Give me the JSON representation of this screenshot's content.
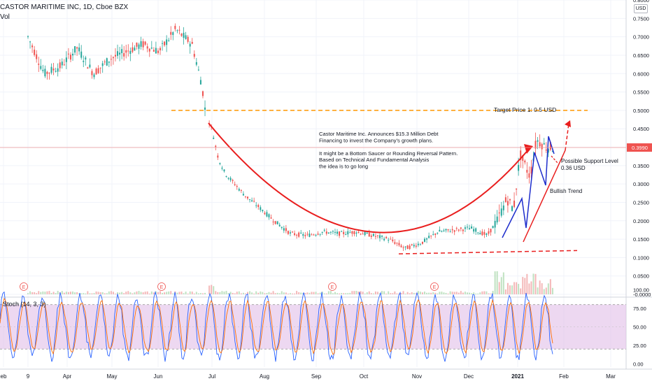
{
  "header": {
    "symbol": "CASTOR MARITIME INC, 1D, Cboe BZX",
    "volume_label": "Vol",
    "currency_badge": "USD"
  },
  "stoch": {
    "label": "Stoch (14, 3, 3)",
    "ticks": [
      "100.00",
      "75.00",
      "50.00",
      "25.00",
      "0.00"
    ],
    "upper_band": 80,
    "lower_band": 20
  },
  "chart_data": {
    "type": "candlestick",
    "y_ticks": [
      "0.8000",
      "0.7500",
      "0.7000",
      "0.6500",
      "0.6000",
      "0.5500",
      "0.5000",
      "0.4500",
      "0.4000",
      "0.3500",
      "0.3000",
      "0.2500",
      "0.2000",
      "0.1500",
      "0.1000",
      "0.0500",
      "-0.0000"
    ],
    "ylim": [
      0,
      0.8
    ],
    "x_ticks": [
      "eb",
      "9",
      "Apr",
      "May",
      "Jun",
      "Jul",
      "Aug",
      "Sep",
      "Oct",
      "Nov",
      "Dec",
      "2021",
      "Feb",
      "Mar"
    ],
    "last_price": "0.3990",
    "price_path": [
      [
        0,
        0.7
      ],
      [
        0.5,
        0.6
      ],
      [
        1,
        0.62
      ],
      [
        1.5,
        0.67
      ],
      [
        2,
        0.6
      ],
      [
        2.5,
        0.64
      ],
      [
        3,
        0.66
      ],
      [
        3.5,
        0.68
      ],
      [
        4,
        0.66
      ],
      [
        4.5,
        0.72
      ],
      [
        5,
        0.68
      ],
      [
        5.3,
        0.57
      ],
      [
        5.4,
        0.5
      ],
      [
        5.6,
        0.45
      ],
      [
        5.8,
        0.37
      ],
      [
        6,
        0.33
      ],
      [
        6.3,
        0.3
      ],
      [
        6.6,
        0.27
      ],
      [
        7,
        0.24
      ],
      [
        7.5,
        0.2
      ],
      [
        8,
        0.165
      ],
      [
        8.5,
        0.16
      ],
      [
        9,
        0.17
      ],
      [
        9.5,
        0.165
      ],
      [
        10,
        0.17
      ],
      [
        10.5,
        0.16
      ],
      [
        11,
        0.15
      ],
      [
        11.5,
        0.125
      ],
      [
        12,
        0.14
      ],
      [
        12.5,
        0.17
      ],
      [
        13,
        0.175
      ],
      [
        13.5,
        0.18
      ],
      [
        14,
        0.16
      ],
      [
        14.3,
        0.2
      ],
      [
        14.6,
        0.26
      ],
      [
        14.8,
        0.23
      ],
      [
        15,
        0.38
      ],
      [
        15.3,
        0.32
      ],
      [
        15.5,
        0.42
      ],
      [
        15.8,
        0.4
      ],
      [
        16,
        0.399
      ]
    ],
    "annotations": {
      "target": "Target Price 1: 0.5 USD",
      "note_lines": [
        "Castor Maritime Inc. Announces $15.3 Million Debt",
        " Financing to invest the Company's growth plans.",
        "",
        "It might be a Bottom Saucer or Rounding Reversal Pattern.",
        "Based on Technical And Fundamental Analysis",
        "the idea is to go long"
      ],
      "support_line1": "Possible Support Level",
      "support_line2": "0.36 USD",
      "trend": "Bullish Trend",
      "earnings_marker": "E"
    },
    "colors": {
      "up": "#26a69a",
      "down": "#ef5350",
      "drawing_red": "#e91e1e",
      "drawing_blue": "#1e2dcc",
      "target_orange": "#ff9800",
      "stoch_k": "#2962ff",
      "stoch_d": "#ff6d00",
      "stoch_band": "#e1bee7",
      "price_badge": "#ef5350"
    }
  }
}
